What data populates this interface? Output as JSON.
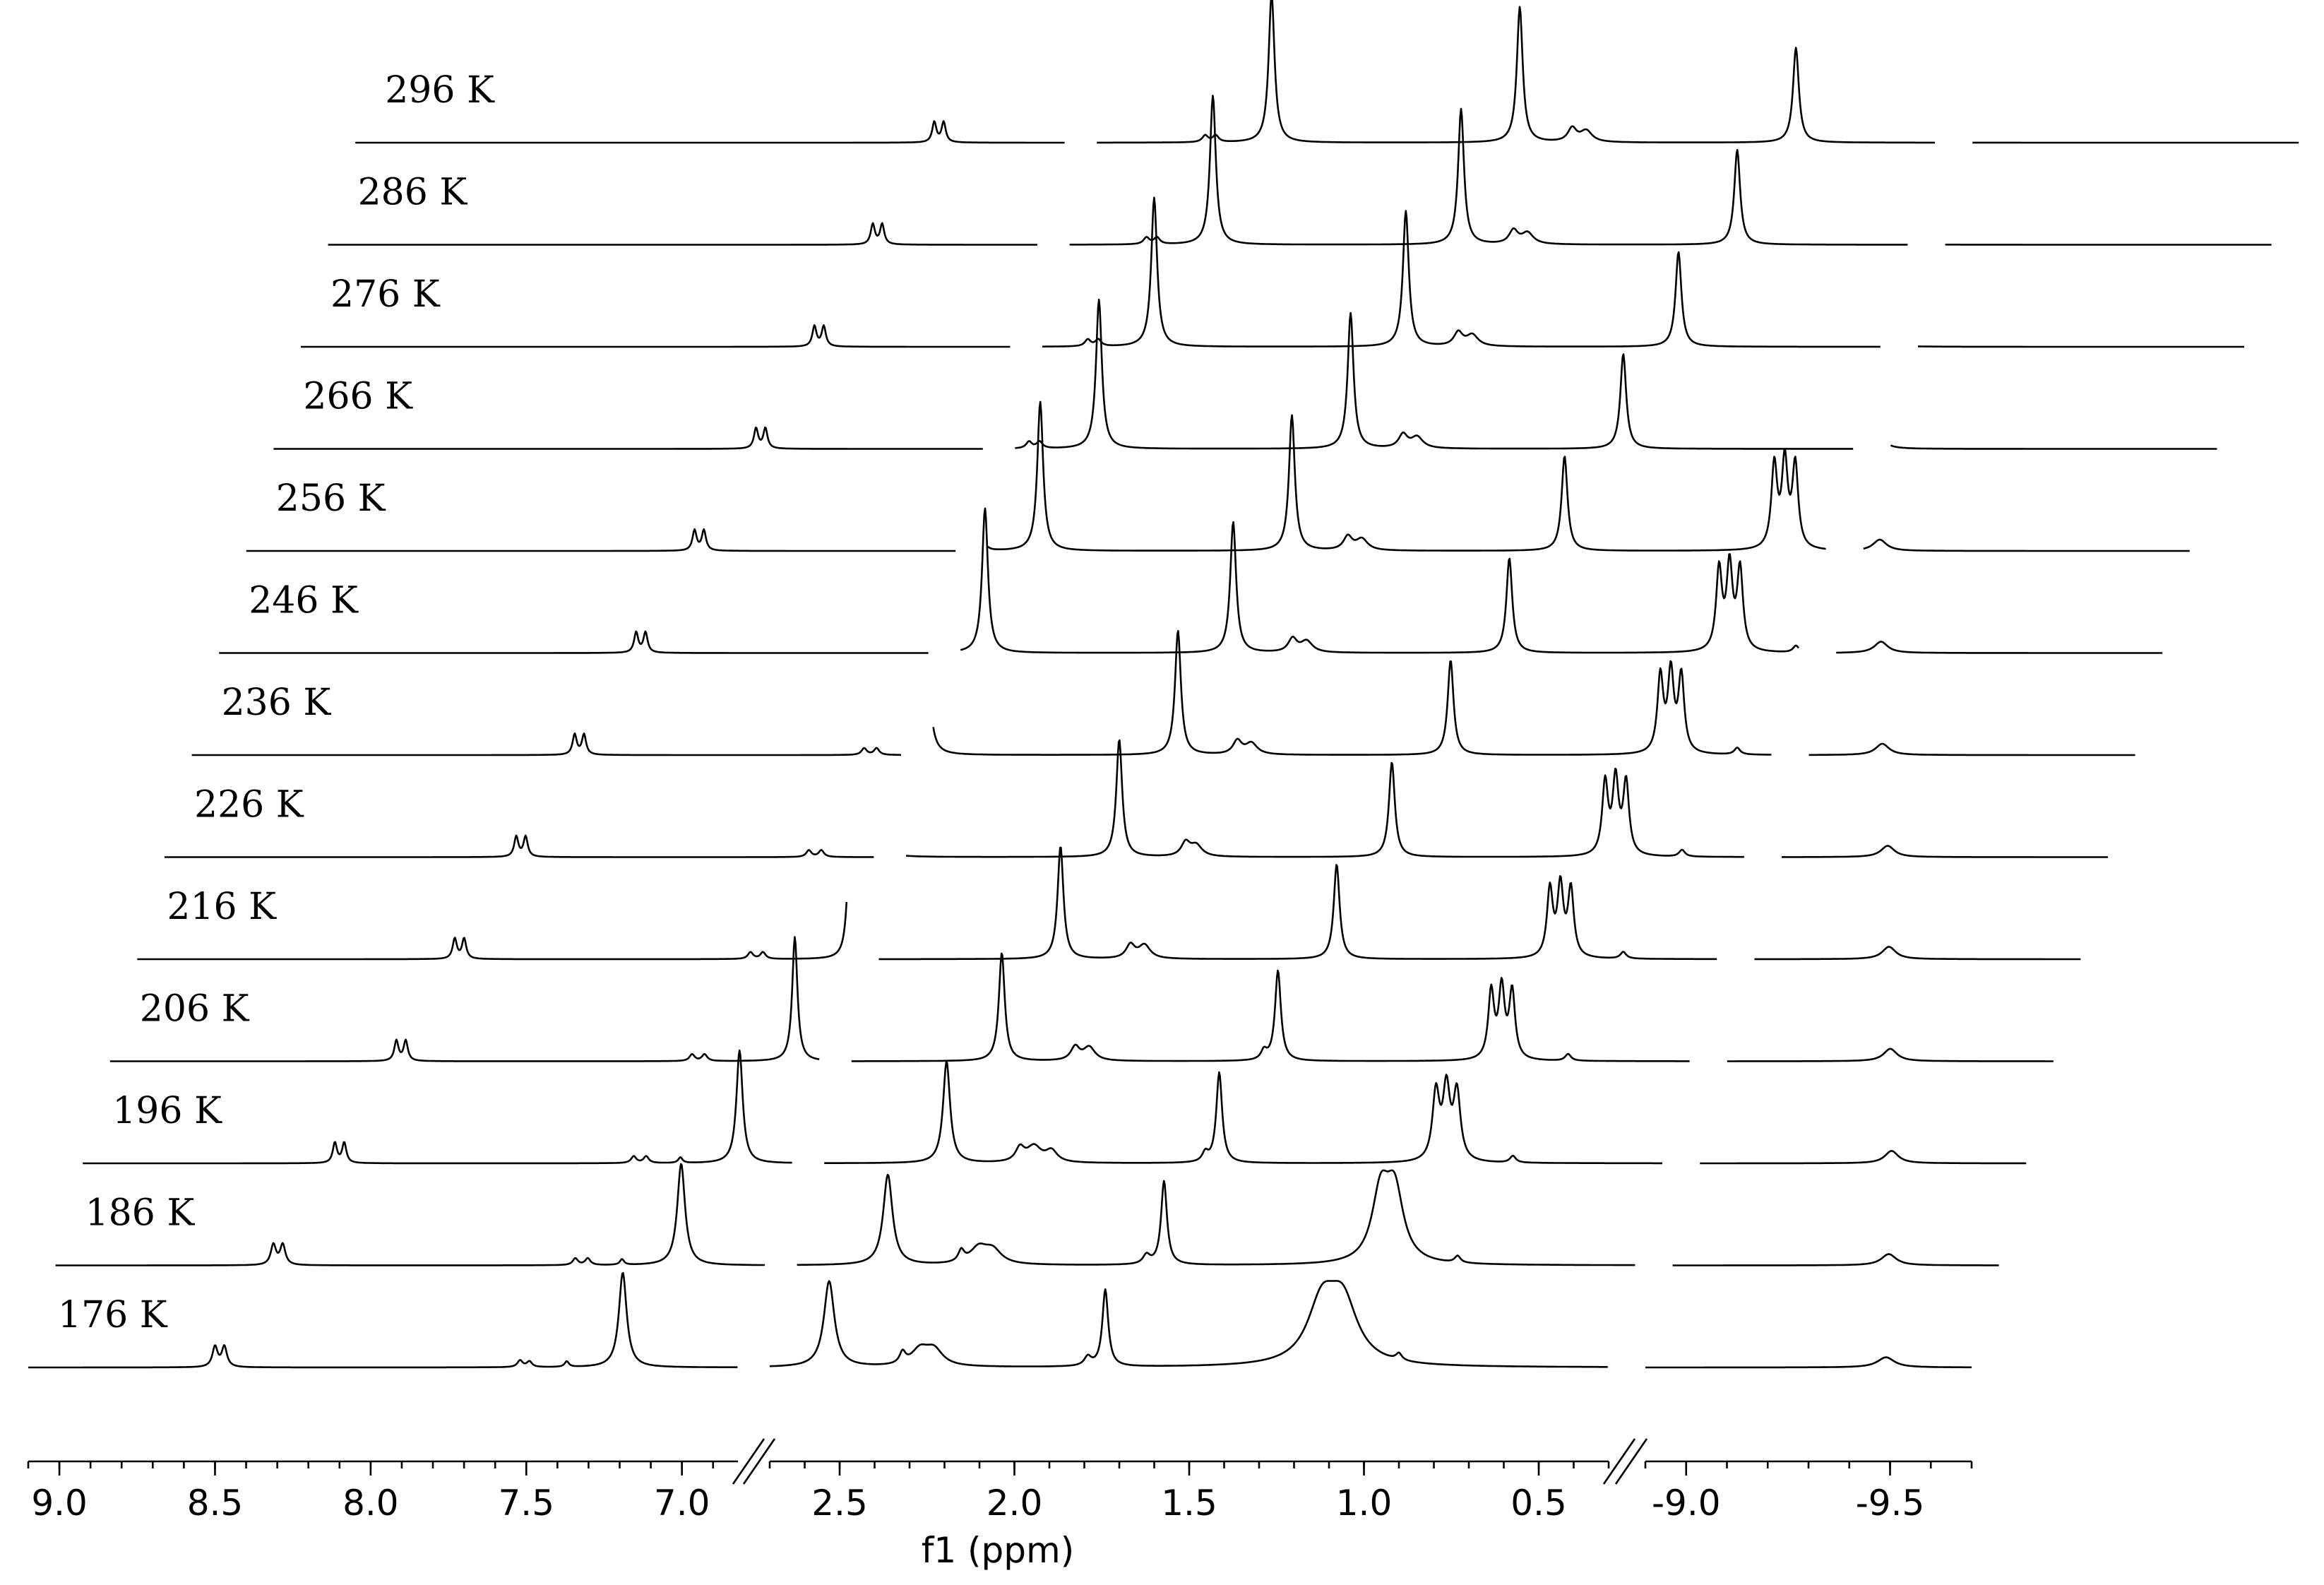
{
  "chart_data": {
    "type": "line",
    "xlabel": "f1 (ppm)",
    "x_axis_segments": [
      {
        "from": 9.1,
        "to": 6.82,
        "ticks": [
          9.0,
          8.5,
          8.0,
          7.5,
          7.0
        ],
        "tick_labels": [
          "9.0",
          "8.5",
          "8.0",
          "7.5",
          "7.0"
        ]
      },
      {
        "from": 2.7,
        "to": 0.3,
        "ticks": [
          2.5,
          2.0,
          1.5,
          1.0,
          0.5
        ],
        "tick_labels": [
          "2.5",
          "2.0",
          "1.5",
          "1.0",
          "0.5"
        ]
      },
      {
        "from": -8.9,
        "to": -9.7,
        "ticks": [
          -9.0,
          -9.5
        ],
        "tick_labels": [
          "-9.0",
          "-9.5"
        ]
      }
    ],
    "axis_breaks": [
      6.82,
      0.3
    ],
    "stacked": true,
    "series": [
      {
        "name": "176 K",
        "peaks": [
          {
            "x": 8.5,
            "h": 0.09,
            "w": 0.01
          },
          {
            "x": 8.47,
            "h": 0.09,
            "w": 0.01
          },
          {
            "x": 7.52,
            "h": 0.03,
            "w": 0.01
          },
          {
            "x": 7.49,
            "h": 0.025,
            "w": 0.01
          },
          {
            "x": 7.37,
            "h": 0.025,
            "w": 0.008
          },
          {
            "x": 7.19,
            "h": 0.42,
            "w": 0.015
          },
          {
            "x": 2.53,
            "h": 0.38,
            "w": 0.018
          },
          {
            "x": 2.32,
            "h": 0.05,
            "w": 0.01
          },
          {
            "x": 2.27,
            "h": 0.07,
            "w": 0.03
          },
          {
            "x": 2.23,
            "h": 0.07,
            "w": 0.03
          },
          {
            "x": 1.79,
            "h": 0.04,
            "w": 0.012
          },
          {
            "x": 1.74,
            "h": 0.34,
            "w": 0.01
          },
          {
            "x": 1.12,
            "h": 0.26,
            "w": 0.05
          },
          {
            "x": 1.06,
            "h": 0.26,
            "w": 0.05
          },
          {
            "x": 0.9,
            "h": 0.03,
            "w": 0.01
          },
          {
            "x": -9.49,
            "h": 0.045,
            "w": 0.025
          }
        ]
      },
      {
        "name": "186 K",
        "peaks": [
          {
            "x": 8.4,
            "h": 0.09,
            "w": 0.01
          },
          {
            "x": 8.37,
            "h": 0.09,
            "w": 0.01
          },
          {
            "x": 7.43,
            "h": 0.03,
            "w": 0.01
          },
          {
            "x": 7.39,
            "h": 0.03,
            "w": 0.01
          },
          {
            "x": 7.28,
            "h": 0.025,
            "w": 0.008
          },
          {
            "x": 7.09,
            "h": 0.45,
            "w": 0.015
          },
          {
            "x": 2.44,
            "h": 0.4,
            "w": 0.016
          },
          {
            "x": 2.23,
            "h": 0.05,
            "w": 0.01
          },
          {
            "x": 2.18,
            "h": 0.07,
            "w": 0.03
          },
          {
            "x": 2.14,
            "h": 0.06,
            "w": 0.03
          },
          {
            "x": 1.7,
            "h": 0.04,
            "w": 0.012
          },
          {
            "x": 1.65,
            "h": 0.37,
            "w": 0.01
          },
          {
            "x": 1.03,
            "h": 0.3,
            "w": 0.03
          },
          {
            "x": 0.99,
            "h": 0.3,
            "w": 0.03
          },
          {
            "x": 0.81,
            "h": 0.03,
            "w": 0.01
          },
          {
            "x": -9.43,
            "h": 0.05,
            "w": 0.022
          }
        ]
      },
      {
        "name": "196 K",
        "peaks": [
          {
            "x": 8.29,
            "h": 0.09,
            "w": 0.008
          },
          {
            "x": 8.26,
            "h": 0.09,
            "w": 0.008
          },
          {
            "x": 7.33,
            "h": 0.03,
            "w": 0.01
          },
          {
            "x": 7.29,
            "h": 0.03,
            "w": 0.01
          },
          {
            "x": 7.18,
            "h": 0.025,
            "w": 0.008
          },
          {
            "x": 6.99,
            "h": 0.5,
            "w": 0.012
          },
          {
            "x": 2.35,
            "h": 0.45,
            "w": 0.012
          },
          {
            "x": 2.14,
            "h": 0.06,
            "w": 0.015
          },
          {
            "x": 2.1,
            "h": 0.07,
            "w": 0.025
          },
          {
            "x": 2.05,
            "h": 0.05,
            "w": 0.02
          },
          {
            "x": 1.61,
            "h": 0.04,
            "w": 0.01
          },
          {
            "x": 1.57,
            "h": 0.4,
            "w": 0.01
          },
          {
            "x": 0.95,
            "h": 0.3,
            "w": 0.012
          },
          {
            "x": 0.92,
            "h": 0.31,
            "w": 0.012
          },
          {
            "x": 0.89,
            "h": 0.3,
            "w": 0.012
          },
          {
            "x": 0.73,
            "h": 0.03,
            "w": 0.01
          },
          {
            "x": -9.37,
            "h": 0.055,
            "w": 0.02
          }
        ]
      },
      {
        "name": "206 K",
        "peaks": [
          {
            "x": 8.18,
            "h": 0.09,
            "w": 0.008
          },
          {
            "x": 8.15,
            "h": 0.09,
            "w": 0.008
          },
          {
            "x": 7.23,
            "h": 0.03,
            "w": 0.01
          },
          {
            "x": 7.19,
            "h": 0.03,
            "w": 0.01
          },
          {
            "x": 6.9,
            "h": 0.55,
            "w": 0.01
          },
          {
            "x": 2.27,
            "h": 0.48,
            "w": 0.01
          },
          {
            "x": 2.06,
            "h": 0.06,
            "w": 0.015
          },
          {
            "x": 2.02,
            "h": 0.06,
            "w": 0.02
          },
          {
            "x": 1.52,
            "h": 0.04,
            "w": 0.01
          },
          {
            "x": 1.48,
            "h": 0.4,
            "w": 0.01
          },
          {
            "x": 0.87,
            "h": 0.3,
            "w": 0.01
          },
          {
            "x": 0.84,
            "h": 0.31,
            "w": 0.01
          },
          {
            "x": 0.81,
            "h": 0.3,
            "w": 0.01
          },
          {
            "x": 0.65,
            "h": 0.03,
            "w": 0.01
          },
          {
            "x": -9.3,
            "h": 0.055,
            "w": 0.02
          }
        ]
      },
      {
        "name": "216 K",
        "peaks": [
          {
            "x": 8.08,
            "h": 0.09,
            "w": 0.008
          },
          {
            "x": 8.05,
            "h": 0.09,
            "w": 0.008
          },
          {
            "x": 7.13,
            "h": 0.03,
            "w": 0.01
          },
          {
            "x": 7.09,
            "h": 0.03,
            "w": 0.01
          },
          {
            "x": 6.81,
            "h": 0.58,
            "w": 0.01
          },
          {
            "x": 2.18,
            "h": 0.5,
            "w": 0.01
          },
          {
            "x": 1.98,
            "h": 0.06,
            "w": 0.015
          },
          {
            "x": 1.94,
            "h": 0.06,
            "w": 0.02
          },
          {
            "x": 1.39,
            "h": 0.42,
            "w": 0.01
          },
          {
            "x": 0.78,
            "h": 0.3,
            "w": 0.01
          },
          {
            "x": 0.75,
            "h": 0.31,
            "w": 0.01
          },
          {
            "x": 0.72,
            "h": 0.3,
            "w": 0.01
          },
          {
            "x": 0.57,
            "h": 0.03,
            "w": 0.01
          },
          {
            "x": -9.23,
            "h": 0.055,
            "w": 0.02
          }
        ]
      },
      {
        "name": "226 K",
        "peaks": [
          {
            "x": 7.97,
            "h": 0.09,
            "w": 0.008
          },
          {
            "x": 7.94,
            "h": 0.09,
            "w": 0.008
          },
          {
            "x": 7.03,
            "h": 0.03,
            "w": 0.01
          },
          {
            "x": 6.99,
            "h": 0.03,
            "w": 0.01
          },
          {
            "x": 2.8,
            "h": 0.6,
            "w": 0.01
          },
          {
            "x": 2.09,
            "h": 0.52,
            "w": 0.01
          },
          {
            "x": 1.9,
            "h": 0.06,
            "w": 0.015
          },
          {
            "x": 1.87,
            "h": 0.05,
            "w": 0.02
          },
          {
            "x": 1.31,
            "h": 0.42,
            "w": 0.01
          },
          {
            "x": 0.7,
            "h": 0.32,
            "w": 0.01
          },
          {
            "x": 0.67,
            "h": 0.33,
            "w": 0.01
          },
          {
            "x": 0.64,
            "h": 0.32,
            "w": 0.01
          },
          {
            "x": 0.48,
            "h": 0.03,
            "w": 0.01
          },
          {
            "x": -9.16,
            "h": 0.05,
            "w": 0.02
          }
        ]
      },
      {
        "name": "236 K",
        "peaks": [
          {
            "x": 7.87,
            "h": 0.09,
            "w": 0.008
          },
          {
            "x": 7.84,
            "h": 0.09,
            "w": 0.008
          },
          {
            "x": 6.94,
            "h": 0.03,
            "w": 0.01
          },
          {
            "x": 6.9,
            "h": 0.03,
            "w": 0.01
          },
          {
            "x": 2.72,
            "h": 0.62,
            "w": 0.01
          },
          {
            "x": 2.0,
            "h": 0.55,
            "w": 0.01
          },
          {
            "x": 1.83,
            "h": 0.06,
            "w": 0.015
          },
          {
            "x": 1.79,
            "h": 0.05,
            "w": 0.02
          },
          {
            "x": 1.22,
            "h": 0.42,
            "w": 0.01
          },
          {
            "x": 0.62,
            "h": 0.34,
            "w": 0.01
          },
          {
            "x": 0.59,
            "h": 0.35,
            "w": 0.01
          },
          {
            "x": 0.56,
            "h": 0.34,
            "w": 0.01
          },
          {
            "x": 0.4,
            "h": 0.03,
            "w": 0.01
          },
          {
            "x": -9.08,
            "h": 0.05,
            "w": 0.02
          }
        ]
      },
      {
        "name": "246 K",
        "peaks": [
          {
            "x": 7.76,
            "h": 0.09,
            "w": 0.008
          },
          {
            "x": 7.73,
            "h": 0.09,
            "w": 0.008
          },
          {
            "x": 2.84,
            "h": 0.03,
            "w": 0.01
          },
          {
            "x": 2.8,
            "h": 0.03,
            "w": 0.01
          },
          {
            "x": 2.63,
            "h": 0.64,
            "w": 0.01
          },
          {
            "x": 1.92,
            "h": 0.58,
            "w": 0.01
          },
          {
            "x": 1.75,
            "h": 0.06,
            "w": 0.015
          },
          {
            "x": 1.71,
            "h": 0.05,
            "w": 0.02
          },
          {
            "x": 1.13,
            "h": 0.42,
            "w": 0.01
          },
          {
            "x": 0.53,
            "h": 0.36,
            "w": 0.01
          },
          {
            "x": 0.5,
            "h": 0.37,
            "w": 0.01
          },
          {
            "x": 0.47,
            "h": 0.36,
            "w": 0.01
          },
          {
            "x": 0.31,
            "h": 0.03,
            "w": 0.01
          },
          {
            "x": -9.01,
            "h": 0.05,
            "w": 0.02
          }
        ]
      },
      {
        "name": "256 K",
        "peaks": [
          {
            "x": 7.66,
            "h": 0.09,
            "w": 0.008
          },
          {
            "x": 7.63,
            "h": 0.09,
            "w": 0.008
          },
          {
            "x": 2.74,
            "h": 0.03,
            "w": 0.01
          },
          {
            "x": 2.71,
            "h": 0.03,
            "w": 0.01
          },
          {
            "x": 2.55,
            "h": 0.66,
            "w": 0.01
          },
          {
            "x": 1.83,
            "h": 0.6,
            "w": 0.01
          },
          {
            "x": 1.67,
            "h": 0.06,
            "w": 0.015
          },
          {
            "x": 1.63,
            "h": 0.05,
            "w": 0.02
          },
          {
            "x": 1.05,
            "h": 0.42,
            "w": 0.01
          },
          {
            "x": 0.45,
            "h": 0.37,
            "w": 0.01
          },
          {
            "x": 0.42,
            "h": 0.38,
            "w": 0.01
          },
          {
            "x": 0.39,
            "h": 0.37,
            "w": 0.01
          },
          {
            "x": -8.94,
            "h": 0.05,
            "w": 0.02
          }
        ]
      },
      {
        "name": "266 K",
        "peaks": [
          {
            "x": 7.55,
            "h": 0.09,
            "w": 0.008
          },
          {
            "x": 7.52,
            "h": 0.09,
            "w": 0.008
          },
          {
            "x": 2.66,
            "h": 0.03,
            "w": 0.01
          },
          {
            "x": 2.63,
            "h": 0.03,
            "w": 0.01
          },
          {
            "x": 2.46,
            "h": 0.66,
            "w": 0.01
          },
          {
            "x": 1.74,
            "h": 0.6,
            "w": 0.01
          },
          {
            "x": 1.59,
            "h": 0.06,
            "w": 0.015
          },
          {
            "x": 1.55,
            "h": 0.05,
            "w": 0.02
          },
          {
            "x": 0.96,
            "h": 0.42,
            "w": 0.01
          },
          {
            "x": -8.87,
            "h": 0.05,
            "w": 0.02
          }
        ]
      },
      {
        "name": "276 K",
        "peaks": [
          {
            "x": 7.45,
            "h": 0.09,
            "w": 0.008
          },
          {
            "x": 7.42,
            "h": 0.09,
            "w": 0.008
          },
          {
            "x": 2.57,
            "h": 0.03,
            "w": 0.01
          },
          {
            "x": 2.54,
            "h": 0.03,
            "w": 0.01
          },
          {
            "x": 2.38,
            "h": 0.66,
            "w": 0.01
          },
          {
            "x": 1.66,
            "h": 0.6,
            "w": 0.01
          },
          {
            "x": 1.51,
            "h": 0.06,
            "w": 0.015
          },
          {
            "x": 1.47,
            "h": 0.05,
            "w": 0.02
          },
          {
            "x": 0.88,
            "h": 0.42,
            "w": 0.01
          },
          {
            "x": -8.8,
            "h": 0.05,
            "w": 0.02
          }
        ]
      },
      {
        "name": "286 K",
        "peaks": [
          {
            "x": 7.35,
            "h": 0.09,
            "w": 0.008
          },
          {
            "x": 7.32,
            "h": 0.09,
            "w": 0.008
          },
          {
            "x": 2.48,
            "h": 0.03,
            "w": 0.01
          },
          {
            "x": 2.45,
            "h": 0.03,
            "w": 0.01
          },
          {
            "x": 2.29,
            "h": 0.66,
            "w": 0.01
          },
          {
            "x": 1.58,
            "h": 0.6,
            "w": 0.01
          },
          {
            "x": 1.43,
            "h": 0.06,
            "w": 0.015
          },
          {
            "x": 1.39,
            "h": 0.05,
            "w": 0.02
          },
          {
            "x": 0.79,
            "h": 0.42,
            "w": 0.01
          },
          {
            "x": -8.73,
            "h": 0.05,
            "w": 0.02
          }
        ]
      },
      {
        "name": "296 K",
        "peaks": [
          {
            "x": 7.24,
            "h": 0.09,
            "w": 0.008
          },
          {
            "x": 7.21,
            "h": 0.09,
            "w": 0.008
          },
          {
            "x": 2.39,
            "h": 0.03,
            "w": 0.01
          },
          {
            "x": 2.36,
            "h": 0.03,
            "w": 0.01
          },
          {
            "x": 2.2,
            "h": 0.66,
            "w": 0.01
          },
          {
            "x": 1.49,
            "h": 0.6,
            "w": 0.01
          },
          {
            "x": 1.34,
            "h": 0.06,
            "w": 0.015
          },
          {
            "x": 1.3,
            "h": 0.05,
            "w": 0.02
          },
          {
            "x": 0.7,
            "h": 0.42,
            "w": 0.01
          },
          {
            "x": -8.66,
            "h": 0.05,
            "w": 0.02
          }
        ]
      }
    ]
  }
}
